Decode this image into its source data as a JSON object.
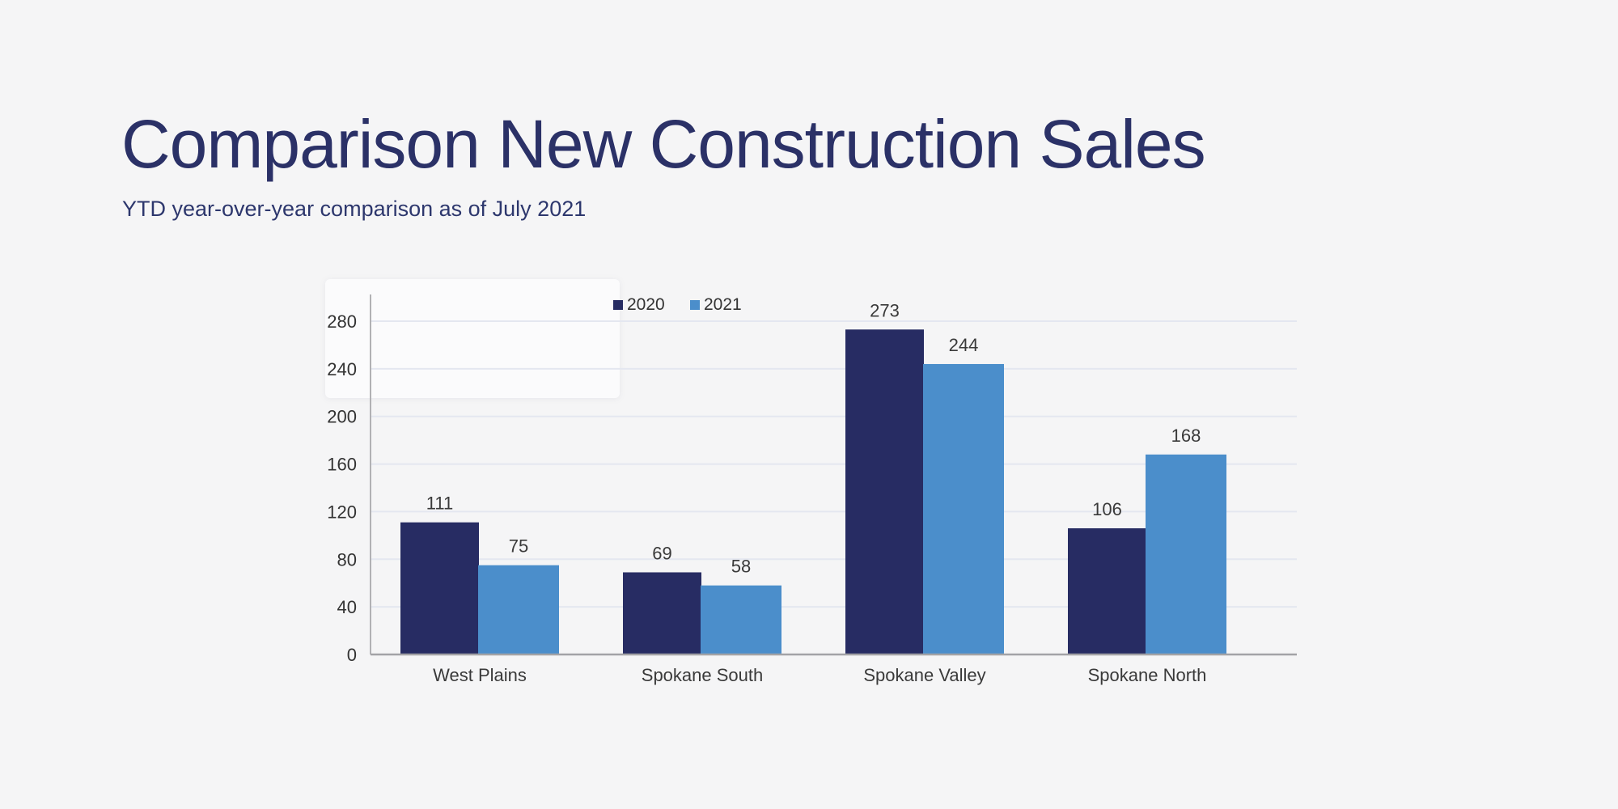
{
  "page": {
    "title": "Comparison New Construction Sales",
    "subtitle": "YTD year-over-year comparison as of July 2021"
  },
  "colors": {
    "background": "#f5f5f6",
    "card": "#fbfbfc",
    "title_text": "#2b3167",
    "subtitle_text": "#2d376d",
    "label_text": "#3a3a3a",
    "tick_text": "#333333",
    "gridline": "#e4e7f0",
    "axis_line": "#b1b1b4",
    "baseline": "#a3a3a6",
    "series_2020": "#272c63",
    "series_2021": "#4b8ecb"
  },
  "chart_data": {
    "type": "bar",
    "title": "Comparison New Construction Sales",
    "subtitle": "YTD year-over-year comparison as of July 2021",
    "categories": [
      "West Plains",
      "Spokane South",
      "Spokane Valley",
      "Spokane North"
    ],
    "series": [
      {
        "name": "2020",
        "color": "#272c63",
        "values": [
          111,
          69,
          273,
          106
        ]
      },
      {
        "name": "2021",
        "color": "#4b8ecb",
        "values": [
          75,
          58,
          244,
          168
        ]
      }
    ],
    "yticks": [
      0,
      40,
      80,
      120,
      160,
      200,
      240,
      280
    ],
    "ylim": [
      0,
      300
    ],
    "xlabel": "",
    "ylabel": "",
    "grid": true,
    "legend_position": "top-center",
    "value_labels": true
  }
}
